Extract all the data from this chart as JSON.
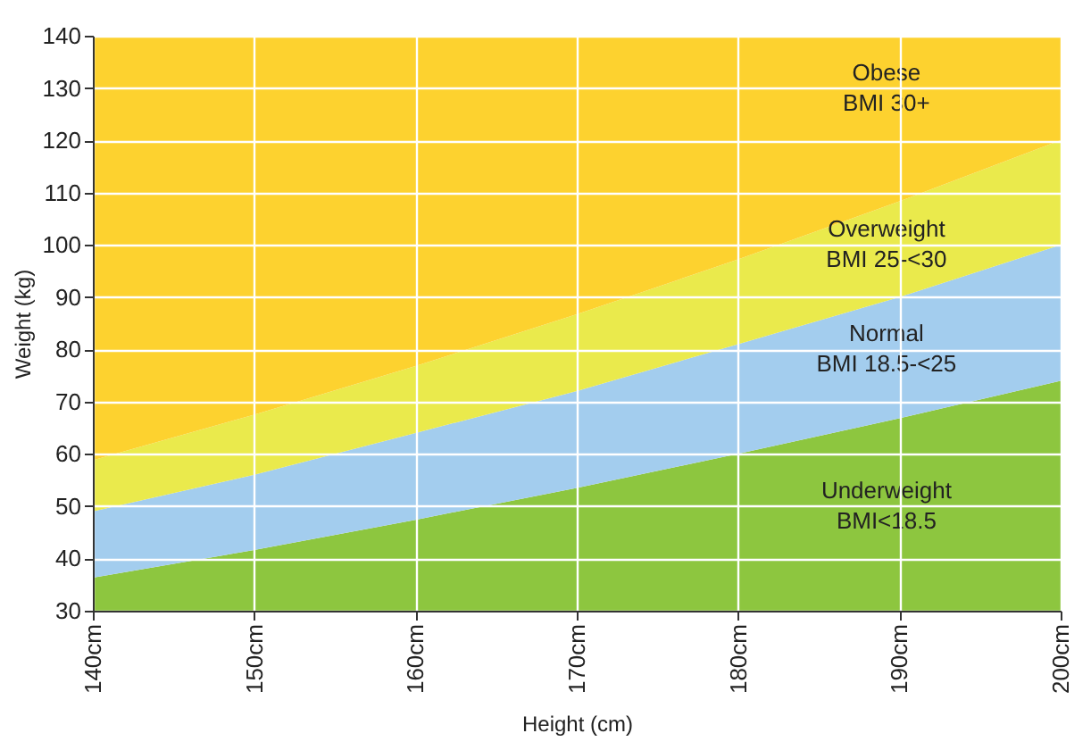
{
  "chart_data": {
    "type": "area",
    "xlabel": "Height (cm)",
    "ylabel": "Weight (kg)",
    "x": [
      140,
      150,
      160,
      170,
      180,
      190,
      200
    ],
    "series": [
      {
        "name": "Underweight\nBMI<18.5",
        "color": "#8dc63f",
        "values": [
          36.3,
          41.6,
          47.4,
          53.5,
          60,
          66.8,
          74
        ]
      },
      {
        "name": "Normal\nBMI 18.5-<25",
        "color": "#a3cdee",
        "values": [
          49,
          56,
          64,
          72,
          81,
          90,
          100
        ]
      },
      {
        "name": "Overweight\nBMI 25-<30",
        "color": "#eaea4c",
        "values": [
          58.8,
          67.5,
          76.8,
          86.7,
          97.2,
          108.3,
          120
        ]
      },
      {
        "name": "Obese\nBMI 30+",
        "color": "#fdd22f",
        "values": [
          140,
          140,
          140,
          140,
          140,
          140,
          140
        ]
      }
    ],
    "xlim": [
      140,
      200
    ],
    "ylim": [
      30,
      140
    ],
    "xticks": [
      {
        "value": 140,
        "label": "140cm"
      },
      {
        "value": 150,
        "label": "150cm"
      },
      {
        "value": 160,
        "label": "160cm"
      },
      {
        "value": 170,
        "label": "170cm"
      },
      {
        "value": 180,
        "label": "180cm"
      },
      {
        "value": 190,
        "label": "190cm"
      },
      {
        "value": 200,
        "label": "200cm"
      }
    ],
    "yticks": [
      30,
      40,
      50,
      60,
      70,
      80,
      90,
      100,
      110,
      120,
      130,
      140
    ],
    "grid": true
  }
}
